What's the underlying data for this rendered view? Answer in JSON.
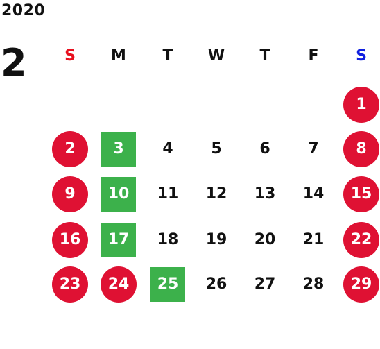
{
  "calendar": {
    "year": "2020",
    "month": "2",
    "weekdays": [
      {
        "label": "S",
        "color": "#e8101f"
      },
      {
        "label": "M",
        "color": "#111111"
      },
      {
        "label": "T",
        "color": "#111111"
      },
      {
        "label": "W",
        "color": "#111111"
      },
      {
        "label": "T",
        "color": "#111111"
      },
      {
        "label": "F",
        "color": "#111111"
      },
      {
        "label": "S",
        "color": "#1020e0"
      }
    ],
    "days": [
      {
        "day": "1",
        "style": "holiday"
      },
      {
        "day": "2",
        "style": "holiday"
      },
      {
        "day": "3",
        "style": "closed"
      },
      {
        "day": "4",
        "style": "normal"
      },
      {
        "day": "5",
        "style": "normal"
      },
      {
        "day": "6",
        "style": "normal"
      },
      {
        "day": "7",
        "style": "normal"
      },
      {
        "day": "8",
        "style": "holiday"
      },
      {
        "day": "9",
        "style": "holiday"
      },
      {
        "day": "10",
        "style": "closed"
      },
      {
        "day": "11",
        "style": "normal"
      },
      {
        "day": "12",
        "style": "normal"
      },
      {
        "day": "13",
        "style": "normal"
      },
      {
        "day": "14",
        "style": "normal"
      },
      {
        "day": "15",
        "style": "holiday"
      },
      {
        "day": "16",
        "style": "holiday"
      },
      {
        "day": "17",
        "style": "closed"
      },
      {
        "day": "18",
        "style": "normal"
      },
      {
        "day": "19",
        "style": "normal"
      },
      {
        "day": "20",
        "style": "normal"
      },
      {
        "day": "21",
        "style": "normal"
      },
      {
        "day": "22",
        "style": "holiday"
      },
      {
        "day": "23",
        "style": "holiday"
      },
      {
        "day": "24",
        "style": "holiday"
      },
      {
        "day": "25",
        "style": "closed"
      },
      {
        "day": "26",
        "style": "normal"
      },
      {
        "day": "27",
        "style": "normal"
      },
      {
        "day": "28",
        "style": "normal"
      },
      {
        "day": "29",
        "style": "holiday"
      }
    ],
    "colors": {
      "holiday": "#df1133",
      "closed": "#3cb14b",
      "text": "#111111"
    }
  }
}
